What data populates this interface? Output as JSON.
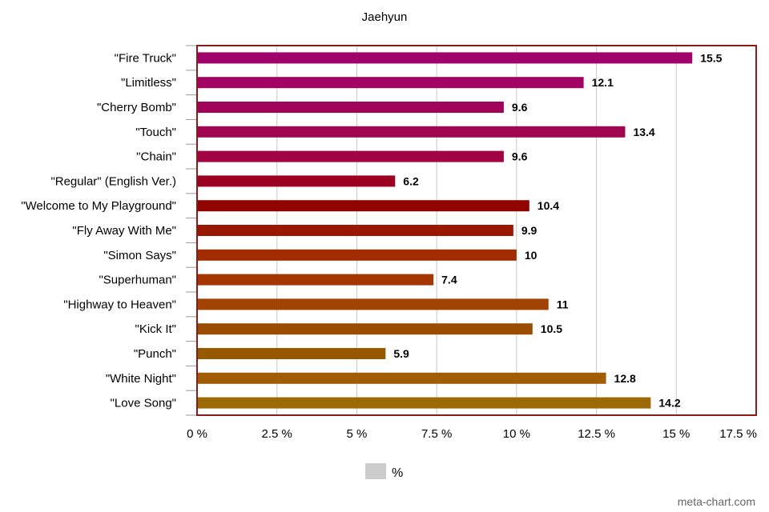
{
  "chart_data": {
    "type": "bar",
    "orientation": "horizontal",
    "title": "Jaehyun",
    "xlabel": "",
    "ylabel": "",
    "xlim": [
      0,
      17.5
    ],
    "tick_values": [
      0,
      2.5,
      5,
      7.5,
      10,
      12.5,
      15,
      17.5
    ],
    "tick_labels": [
      "0 %",
      "2.5 %",
      "5 %",
      "7.5 %",
      "10 %",
      "12.5 %",
      "15 %",
      "17.5 %"
    ],
    "grid": true,
    "categories": [
      "\"Fire Truck\"",
      "\"Limitless\"",
      "\"Cherry Bomb\"",
      "\"Touch\"",
      "\"Chain\"",
      "\"Regular\" (English Ver.)",
      "\"Welcome to My Playground\"",
      "\"Fly Away With Me\"",
      "\"Simon Says\"",
      "\"Superhuman\"",
      "\"Highway to Heaven\"",
      "\"Kick It\"",
      "\"Punch\"",
      "\"White Night\"",
      "\"Love Song\""
    ],
    "values": [
      15.5,
      12.1,
      9.6,
      13.4,
      9.6,
      6.2,
      10.4,
      9.9,
      10,
      7.4,
      11,
      10.5,
      5.9,
      12.8,
      14.2
    ],
    "bar_colors": [
      "#A0046C",
      "#A20464",
      "#A0035A",
      "#A00550",
      "#A10343",
      "#9C0122",
      "#900400",
      "#9A1800",
      "#A12C00",
      "#A43700",
      "#A24203",
      "#9A4C01",
      "#975800",
      "#A15C04",
      "#9C6A04"
    ],
    "series": [
      {
        "name": "%",
        "values": [
          15.5,
          12.1,
          9.6,
          13.4,
          9.6,
          6.2,
          10.4,
          9.9,
          10,
          7.4,
          11,
          10.5,
          5.9,
          12.8,
          14.2
        ]
      }
    ],
    "legend": {
      "label": "%",
      "position": "bottom-center",
      "swatch_color": "#CCCCCC"
    },
    "frame_color": "#8B1A1A",
    "credit": "meta-chart.com"
  }
}
